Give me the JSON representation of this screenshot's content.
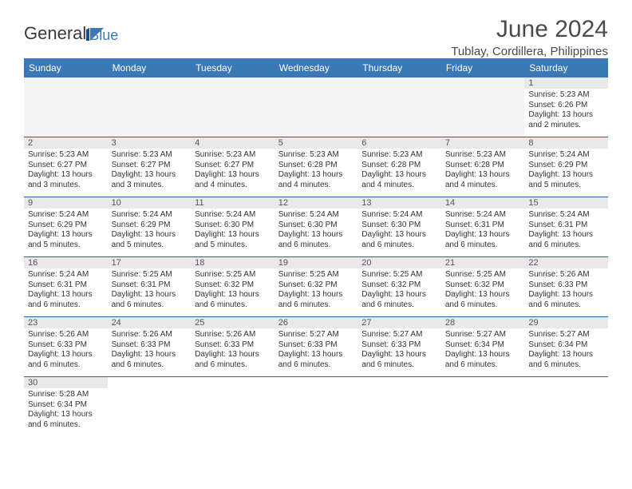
{
  "logo": {
    "text1": "General",
    "text2": "Blue"
  },
  "title": "June 2024",
  "subtitle": "Tublay, Cordillera, Philippines",
  "colors": {
    "header_bg": "#3a78b6",
    "header_text": "#ffffff",
    "daynum_bg": "#e9e9e9",
    "row_divider": "#2e5f96",
    "body_text": "#333333",
    "title_text": "#4a4a4a",
    "page_bg": "#ffffff"
  },
  "fonts": {
    "title_size_pt": 30,
    "subtitle_size_pt": 15,
    "dayheader_size_pt": 12,
    "daynum_size_pt": 11,
    "cell_size_pt": 10
  },
  "dayHeaders": [
    "Sunday",
    "Monday",
    "Tuesday",
    "Wednesday",
    "Thursday",
    "Friday",
    "Saturday"
  ],
  "weeks": [
    {
      "nums": [
        "",
        "",
        "",
        "",
        "",
        "",
        "1"
      ],
      "cells": [
        null,
        null,
        null,
        null,
        null,
        null,
        {
          "sunrise": "5:23 AM",
          "sunset": "6:26 PM",
          "daylight": "13 hours and 2 minutes."
        }
      ]
    },
    {
      "nums": [
        "2",
        "3",
        "4",
        "5",
        "6",
        "7",
        "8"
      ],
      "cells": [
        {
          "sunrise": "5:23 AM",
          "sunset": "6:27 PM",
          "daylight": "13 hours and 3 minutes."
        },
        {
          "sunrise": "5:23 AM",
          "sunset": "6:27 PM",
          "daylight": "13 hours and 3 minutes."
        },
        {
          "sunrise": "5:23 AM",
          "sunset": "6:27 PM",
          "daylight": "13 hours and 4 minutes."
        },
        {
          "sunrise": "5:23 AM",
          "sunset": "6:28 PM",
          "daylight": "13 hours and 4 minutes."
        },
        {
          "sunrise": "5:23 AM",
          "sunset": "6:28 PM",
          "daylight": "13 hours and 4 minutes."
        },
        {
          "sunrise": "5:23 AM",
          "sunset": "6:28 PM",
          "daylight": "13 hours and 4 minutes."
        },
        {
          "sunrise": "5:24 AM",
          "sunset": "6:29 PM",
          "daylight": "13 hours and 5 minutes."
        }
      ]
    },
    {
      "nums": [
        "9",
        "10",
        "11",
        "12",
        "13",
        "14",
        "15"
      ],
      "cells": [
        {
          "sunrise": "5:24 AM",
          "sunset": "6:29 PM",
          "daylight": "13 hours and 5 minutes."
        },
        {
          "sunrise": "5:24 AM",
          "sunset": "6:29 PM",
          "daylight": "13 hours and 5 minutes."
        },
        {
          "sunrise": "5:24 AM",
          "sunset": "6:30 PM",
          "daylight": "13 hours and 5 minutes."
        },
        {
          "sunrise": "5:24 AM",
          "sunset": "6:30 PM",
          "daylight": "13 hours and 6 minutes."
        },
        {
          "sunrise": "5:24 AM",
          "sunset": "6:30 PM",
          "daylight": "13 hours and 6 minutes."
        },
        {
          "sunrise": "5:24 AM",
          "sunset": "6:31 PM",
          "daylight": "13 hours and 6 minutes."
        },
        {
          "sunrise": "5:24 AM",
          "sunset": "6:31 PM",
          "daylight": "13 hours and 6 minutes."
        }
      ]
    },
    {
      "nums": [
        "16",
        "17",
        "18",
        "19",
        "20",
        "21",
        "22"
      ],
      "cells": [
        {
          "sunrise": "5:24 AM",
          "sunset": "6:31 PM",
          "daylight": "13 hours and 6 minutes."
        },
        {
          "sunrise": "5:25 AM",
          "sunset": "6:31 PM",
          "daylight": "13 hours and 6 minutes."
        },
        {
          "sunrise": "5:25 AM",
          "sunset": "6:32 PM",
          "daylight": "13 hours and 6 minutes."
        },
        {
          "sunrise": "5:25 AM",
          "sunset": "6:32 PM",
          "daylight": "13 hours and 6 minutes."
        },
        {
          "sunrise": "5:25 AM",
          "sunset": "6:32 PM",
          "daylight": "13 hours and 6 minutes."
        },
        {
          "sunrise": "5:25 AM",
          "sunset": "6:32 PM",
          "daylight": "13 hours and 6 minutes."
        },
        {
          "sunrise": "5:26 AM",
          "sunset": "6:33 PM",
          "daylight": "13 hours and 6 minutes."
        }
      ]
    },
    {
      "nums": [
        "23",
        "24",
        "25",
        "26",
        "27",
        "28",
        "29"
      ],
      "cells": [
        {
          "sunrise": "5:26 AM",
          "sunset": "6:33 PM",
          "daylight": "13 hours and 6 minutes."
        },
        {
          "sunrise": "5:26 AM",
          "sunset": "6:33 PM",
          "daylight": "13 hours and 6 minutes."
        },
        {
          "sunrise": "5:26 AM",
          "sunset": "6:33 PM",
          "daylight": "13 hours and 6 minutes."
        },
        {
          "sunrise": "5:27 AM",
          "sunset": "6:33 PM",
          "daylight": "13 hours and 6 minutes."
        },
        {
          "sunrise": "5:27 AM",
          "sunset": "6:33 PM",
          "daylight": "13 hours and 6 minutes."
        },
        {
          "sunrise": "5:27 AM",
          "sunset": "6:34 PM",
          "daylight": "13 hours and 6 minutes."
        },
        {
          "sunrise": "5:27 AM",
          "sunset": "6:34 PM",
          "daylight": "13 hours and 6 minutes."
        }
      ]
    },
    {
      "nums": [
        "30",
        "",
        "",
        "",
        "",
        "",
        ""
      ],
      "cells": [
        {
          "sunrise": "5:28 AM",
          "sunset": "6:34 PM",
          "daylight": "13 hours and 6 minutes."
        },
        null,
        null,
        null,
        null,
        null,
        null
      ]
    }
  ],
  "labels": {
    "sunrise": "Sunrise:",
    "sunset": "Sunset:",
    "daylight": "Daylight:"
  }
}
